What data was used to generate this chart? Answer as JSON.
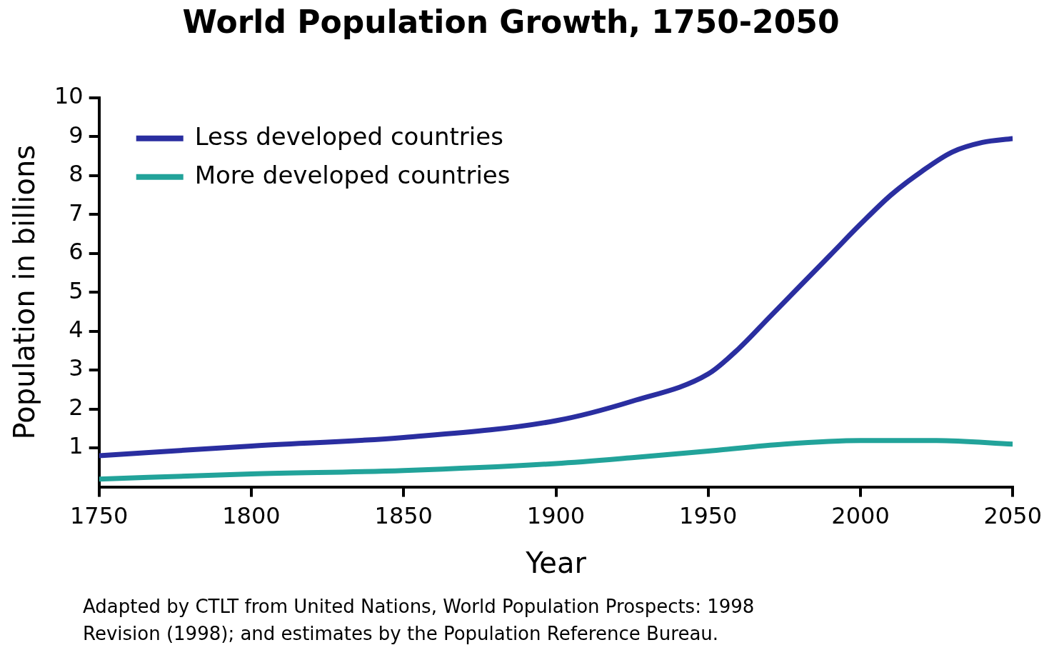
{
  "chart_data": {
    "type": "line",
    "title": "World Population Growth, 1750-2050",
    "xlabel": "Year",
    "ylabel": "Population in billions",
    "x": [
      1750,
      1800,
      1850,
      1900,
      1925,
      1950,
      1960,
      1970,
      1980,
      1990,
      2000,
      2010,
      2020,
      2030,
      2040,
      2050
    ],
    "series": [
      {
        "name": "Less developed countries",
        "color": "#2a2ea0",
        "values": [
          0.8,
          1.05,
          1.27,
          1.7,
          2.2,
          2.9,
          3.55,
          4.35,
          5.15,
          5.95,
          6.75,
          7.5,
          8.1,
          8.6,
          8.85,
          8.95
        ]
      },
      {
        "name": "More developed countries",
        "color": "#22a39a",
        "x": [
          1750,
          1800,
          1850,
          1900,
          1925,
          1950,
          1975,
          2000,
          2025,
          2050
        ],
        "values": [
          0.2,
          0.33,
          0.42,
          0.6,
          0.75,
          0.92,
          1.1,
          1.19,
          1.19,
          1.1
        ]
      }
    ],
    "xlim": [
      1750,
      2050
    ],
    "xticks": [
      1750,
      1800,
      1850,
      1900,
      1950,
      2000,
      2050
    ],
    "ylim": [
      0,
      10
    ],
    "yticks": [
      1,
      2,
      3,
      4,
      5,
      6,
      7,
      8,
      9,
      10
    ],
    "legend": "top left",
    "marker": "none",
    "line_style": "solid",
    "annotations": [
      "Adapted by CTLT from United Nations, World Population Prospects: 1998 Revision (1998); and estimates by the Population Reference Bureau."
    ]
  }
}
